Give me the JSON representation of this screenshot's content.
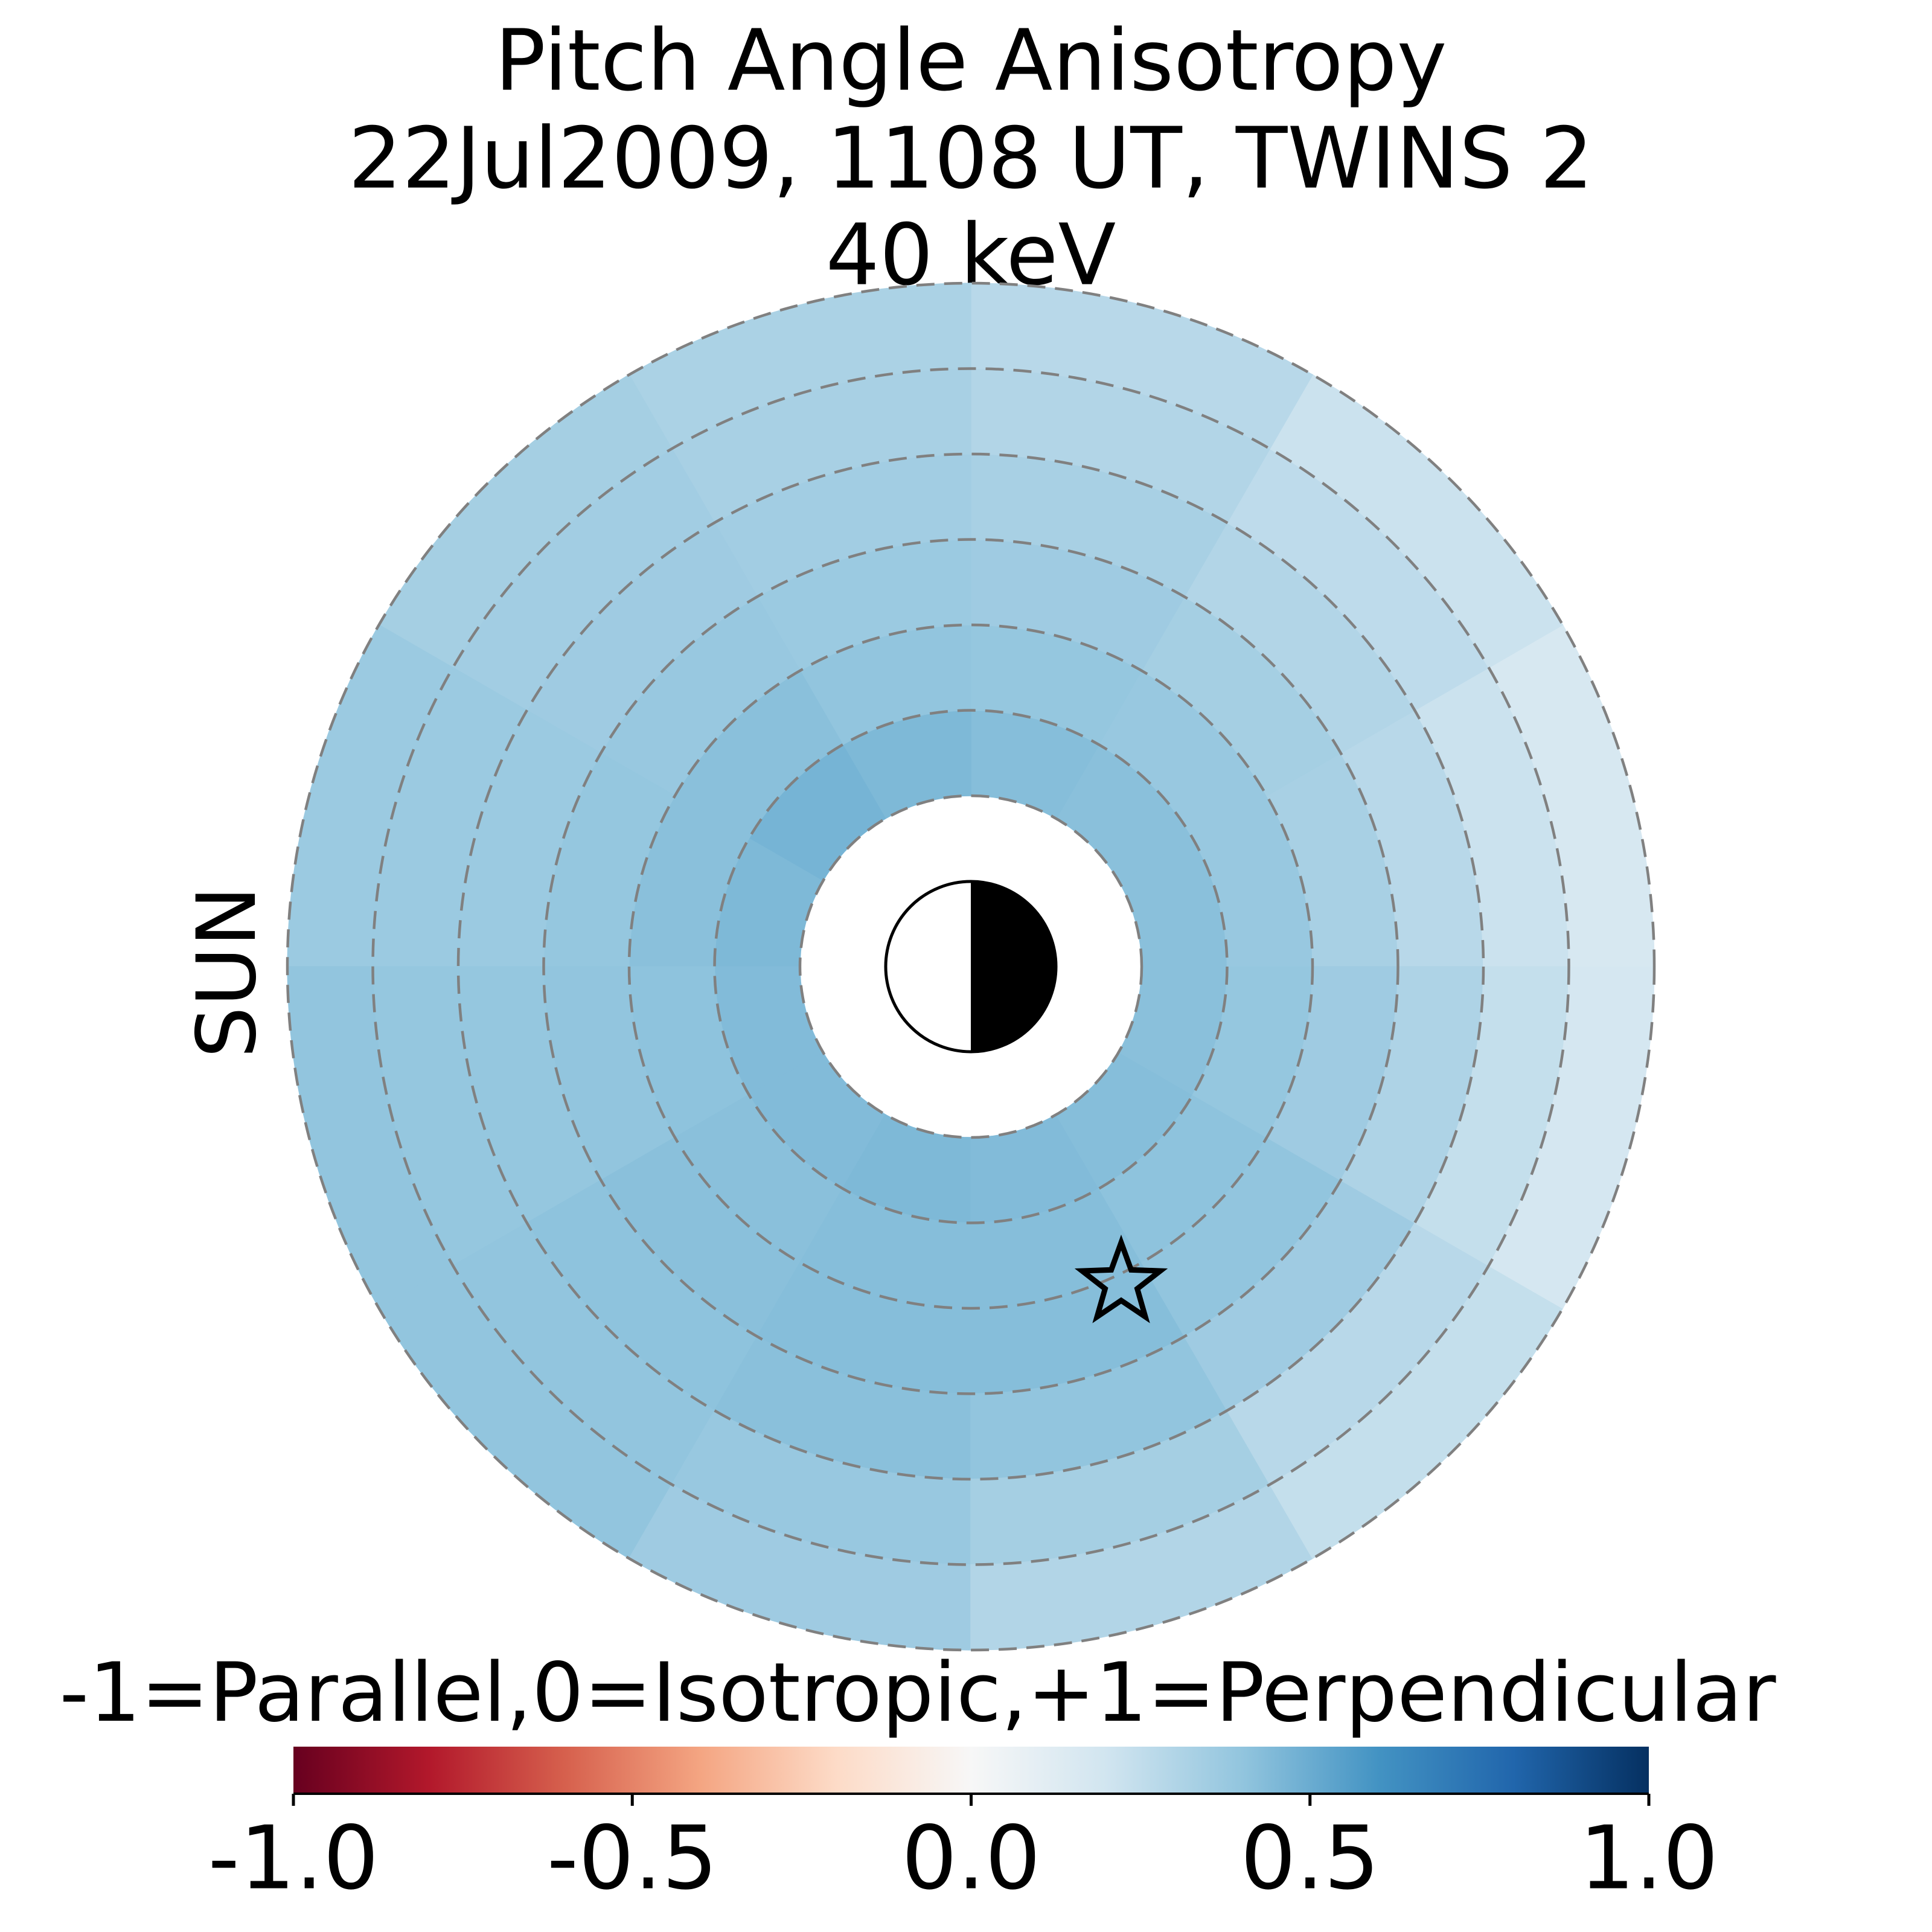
{
  "chart_data": {
    "type": "polar-heatmap",
    "title": [
      "Pitch Angle Anisotropy",
      "22Jul2009, 1108 UT,  TWINS 2",
      "40 keV"
    ],
    "sun_label": "SUN",
    "colorbar_label": "-1=Parallel,0=Isotropic,+1=Perpendicular",
    "r_edges": [
      2,
      3,
      4,
      5,
      6,
      7,
      8
    ],
    "theta_edges": [
      0,
      30,
      60,
      90,
      120,
      150,
      180,
      210,
      240,
      270,
      300,
      330,
      360
    ],
    "values": [
      [
        0.42,
        0.42,
        0.43,
        0.45,
        0.47,
        0.45,
        0.44,
        0.44,
        0.45,
        0.44,
        0.43,
        0.42
      ],
      [
        0.38,
        0.38,
        0.39,
        0.4,
        0.42,
        0.42,
        0.41,
        0.42,
        0.43,
        0.43,
        0.41,
        0.39
      ],
      [
        0.33,
        0.34,
        0.36,
        0.37,
        0.38,
        0.39,
        0.4,
        0.42,
        0.43,
        0.43,
        0.4,
        0.36
      ],
      [
        0.28,
        0.3,
        0.33,
        0.35,
        0.36,
        0.37,
        0.39,
        0.41,
        0.42,
        0.4,
        0.36,
        0.31
      ],
      [
        0.22,
        0.26,
        0.3,
        0.33,
        0.35,
        0.37,
        0.39,
        0.4,
        0.38,
        0.34,
        0.28,
        0.24
      ],
      [
        0.17,
        0.22,
        0.28,
        0.32,
        0.34,
        0.37,
        0.4,
        0.4,
        0.36,
        0.3,
        0.24,
        0.18
      ]
    ],
    "rgrid": [
      2,
      3,
      4,
      5,
      6,
      7,
      8
    ],
    "marker": {
      "x": 1.76,
      "y": -3.71
    },
    "clim": [
      -1,
      1
    ],
    "cticks": [
      {
        "value": -1,
        "label": "-1.0"
      },
      -0.5,
      {
        "value": 0,
        "label": "0.0"
      },
      0.5,
      {
        "value": 1,
        "label": "1.0"
      }
    ],
    "colormap": [
      "#67001f",
      "#b2182b",
      "#d6604d",
      "#f4a582",
      "#fddbc7",
      "#f7f7f7",
      "#d1e5f0",
      "#92c5de",
      "#4393c3",
      "#2166ac",
      "#053061"
    ],
    "sun_color": "#f5a300"
  }
}
